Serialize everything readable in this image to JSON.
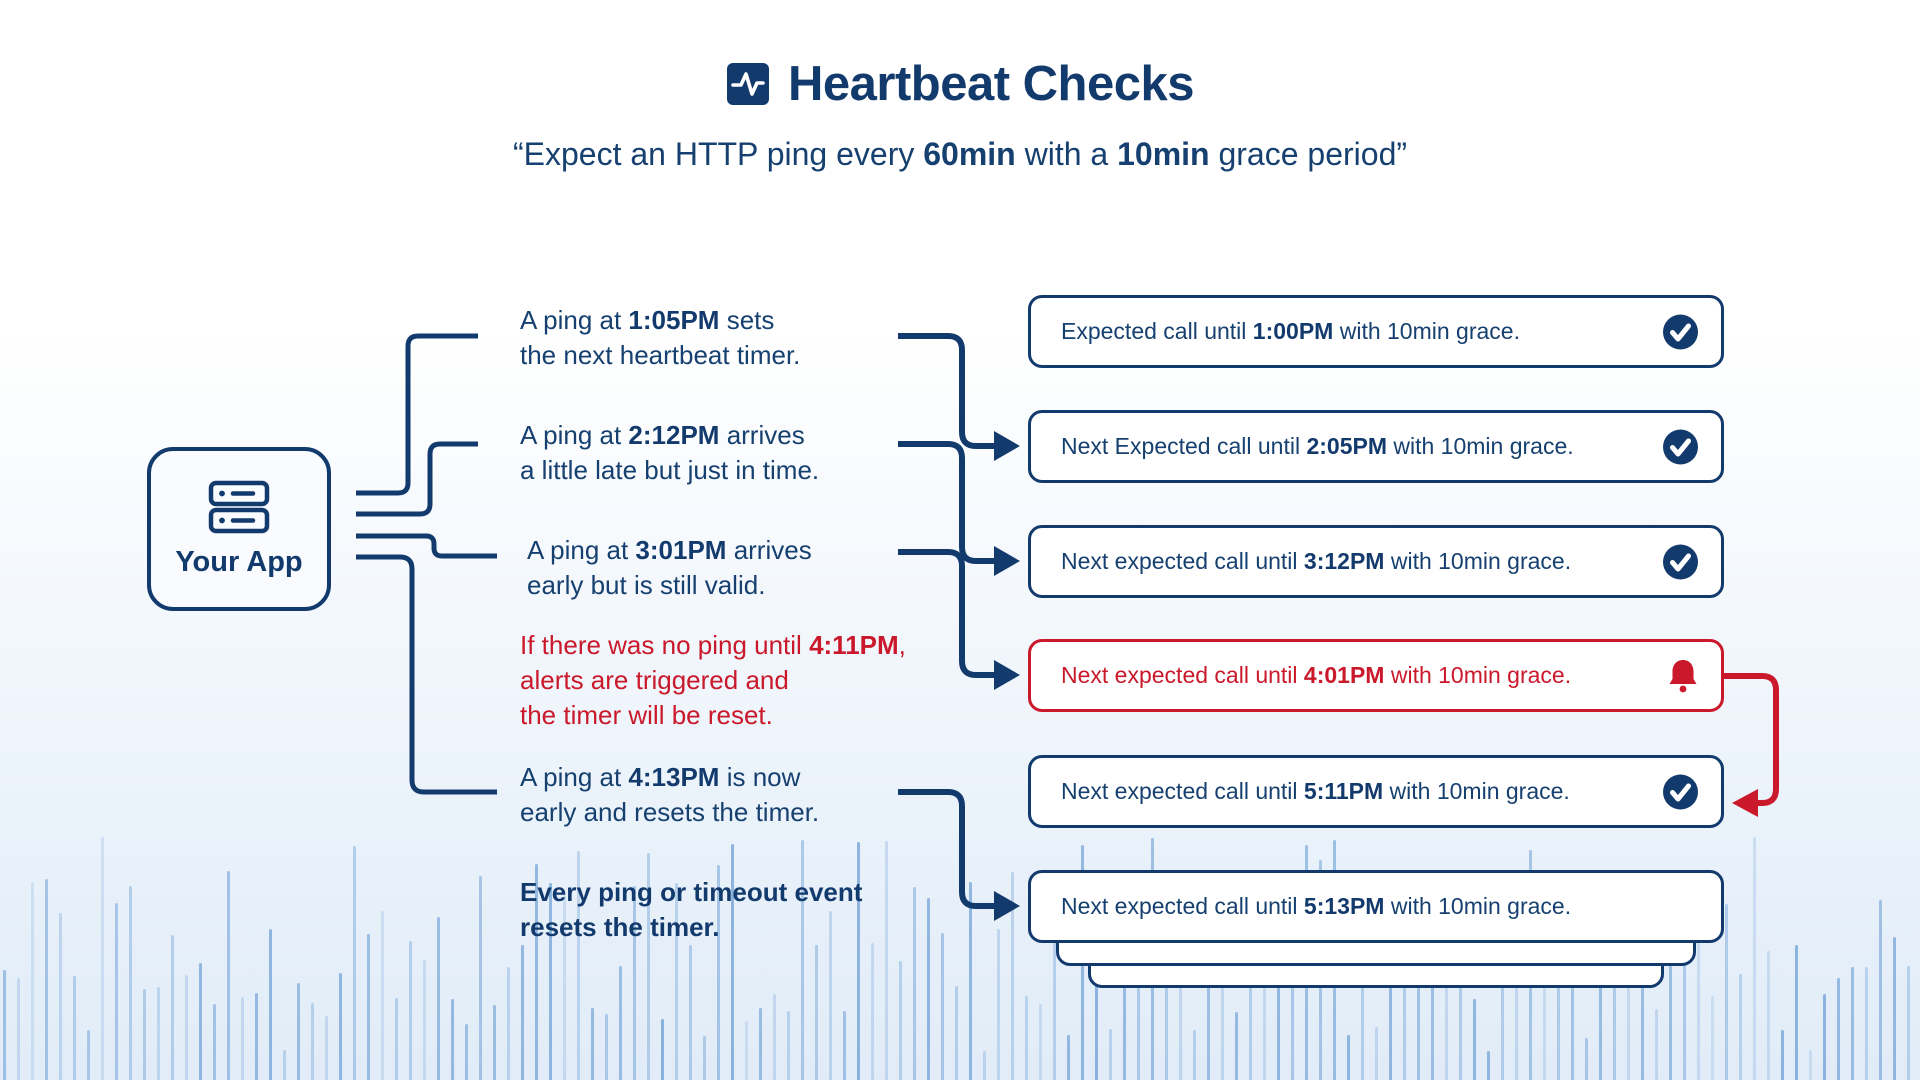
{
  "colors": {
    "navy": "#133a6d",
    "red": "#c9192b",
    "wave": "#2e76c4"
  },
  "header": {
    "title": "Heartbeat Checks",
    "subtitle_parts": [
      "“Expect an HTTP ping every ",
      "60min",
      " with a ",
      "10min",
      " grace period”"
    ]
  },
  "app_node": {
    "label": "Your App",
    "icon": "server-icon"
  },
  "events": [
    {
      "pre": "A ping at ",
      "time": "1:05PM",
      "post": " sets",
      "line2": "the next heartbeat timer."
    },
    {
      "pre": "A ping at ",
      "time": "2:12PM",
      "post": " arrives",
      "line2": "a little late but just in time."
    },
    {
      "pre": "A ping at ",
      "time": "3:01PM",
      "post": " arrives",
      "line2": "early but is still valid."
    },
    {
      "pre": "If there was no ping until ",
      "time": "4:11PM",
      "post": ",",
      "line2": "alerts are triggered and",
      "line3": "the timer will be reset."
    },
    {
      "pre": "A ping at ",
      "time": "4:13PM",
      "post": " is now",
      "line2": "early and resets the timer."
    },
    {
      "line1": "Every ping or timeout event",
      "line2": "resets the timer."
    }
  ],
  "cards": [
    {
      "pre": "Expected call until ",
      "time": "1:00PM",
      "post": " with 10min grace.",
      "icon": "check"
    },
    {
      "pre": "Next Expected call until ",
      "time": "2:05PM",
      "post": " with 10min grace.",
      "icon": "check"
    },
    {
      "pre": "Next expected call until ",
      "time": "3:12PM",
      "post": " with 10min grace.",
      "icon": "check"
    },
    {
      "pre": "Next expected call until ",
      "time": "4:01PM",
      "post": " with 10min grace.",
      "icon": "bell"
    },
    {
      "pre": "Next expected call until ",
      "time": "5:11PM",
      "post": " with 10min grace.",
      "icon": "check"
    },
    {
      "pre": "Next expected call until ",
      "time": "5:13PM",
      "post": " with 10min grace.",
      "icon": "none"
    }
  ]
}
